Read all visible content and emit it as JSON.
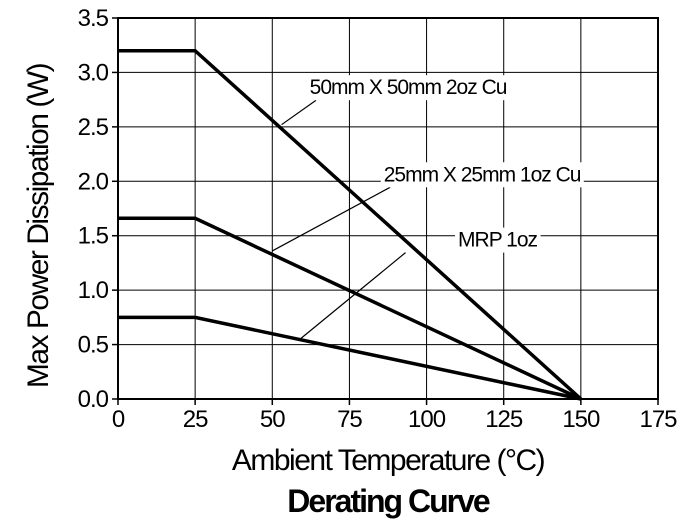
{
  "chart_data": {
    "type": "line",
    "title": "Derating Curve",
    "xlabel": "Ambient Temperature (°C)",
    "ylabel": "Max Power Dissipation (W)",
    "xlim": [
      0,
      175
    ],
    "ylim": [
      0,
      3.5
    ],
    "xticks": [
      "0",
      "25",
      "50",
      "75",
      "100",
      "125",
      "150",
      "175"
    ],
    "yticks": [
      "0.0",
      "0.5",
      "1.0",
      "1.5",
      "2.0",
      "2.5",
      "3.0",
      "3.5"
    ],
    "grid": true,
    "series": [
      {
        "name": "50mm X 50mm 2oz Cu",
        "x": [
          0,
          25,
          150
        ],
        "y": [
          3.2,
          3.2,
          0.0
        ]
      },
      {
        "name": "25mm X 25mm 1oz Cu",
        "x": [
          0,
          25,
          150
        ],
        "y": [
          1.66,
          1.66,
          0.0
        ]
      },
      {
        "name": "MRP 1oz",
        "x": [
          0,
          25,
          150
        ],
        "y": [
          0.75,
          0.75,
          0.0
        ]
      }
    ],
    "annotations": [
      {
        "text": "50mm X 50mm 2oz Cu",
        "series": 0,
        "label_x": 94,
        "label_y": 2.8,
        "target_x": 53,
        "target_y": 2.52
      },
      {
        "text": "25mm X 25mm 1oz Cu",
        "series": 1,
        "label_x": 118,
        "label_y": 2.0,
        "target_x": 50,
        "target_y": 1.36
      },
      {
        "text": "MRP 1oz",
        "series": 2,
        "label_x": 123,
        "label_y": 1.4,
        "target_x": 59,
        "target_y": 0.55
      }
    ],
    "colors": {
      "line": "#000000",
      "grid": "#000000",
      "background": "#ffffff"
    }
  }
}
